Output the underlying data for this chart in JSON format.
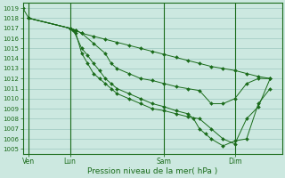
{
  "bg_color": "#cce8e0",
  "grid_color": "#9dc8c0",
  "line_color": "#1a6b1a",
  "marker_color": "#1a6b1a",
  "ylabel_ticks": [
    1005,
    1006,
    1007,
    1008,
    1009,
    1010,
    1011,
    1012,
    1013,
    1014,
    1015,
    1016,
    1017,
    1018,
    1019
  ],
  "xlabel": "Pression niveau de la mer( hPa )",
  "day_labels": [
    "Ven",
    "Lun",
    "Sam",
    "Dim"
  ],
  "day_positions": [
    0.5,
    4.0,
    12.0,
    18.0
  ],
  "series": [
    {
      "x": [
        0,
        0.5,
        4.0,
        4.5,
        5.0,
        6.0,
        7.0,
        8.0,
        9.0,
        10.0,
        11.0,
        12.0,
        13.0,
        14.0,
        15.0,
        16.0,
        17.0,
        18.0,
        19.0,
        20.0,
        21.0
      ],
      "y": [
        1019.0,
        1018.0,
        1017.0,
        1016.8,
        1016.5,
        1016.2,
        1015.9,
        1015.6,
        1015.3,
        1015.0,
        1014.7,
        1014.4,
        1014.1,
        1013.8,
        1013.5,
        1013.2,
        1013.0,
        1012.8,
        1012.5,
        1012.2,
        1012.0
      ]
    },
    {
      "x": [
        0.5,
        4.0,
        4.5,
        5.0,
        6.0,
        7.0,
        7.5,
        8.0,
        9.0,
        10.0,
        11.0,
        12.0,
        13.0,
        14.0,
        15.0,
        16.0,
        17.0,
        18.0,
        19.0,
        20.0,
        21.0
      ],
      "y": [
        1018.0,
        1017.0,
        1016.8,
        1016.5,
        1015.5,
        1014.5,
        1013.5,
        1013.0,
        1012.5,
        1012.0,
        1011.8,
        1011.5,
        1011.2,
        1011.0,
        1010.8,
        1009.5,
        1009.5,
        1010.0,
        1011.5,
        1012.0,
        1012.0
      ]
    },
    {
      "x": [
        0.5,
        4.0,
        4.5,
        5.0,
        5.5,
        6.0,
        6.5,
        7.0,
        7.5,
        8.0,
        9.0,
        10.0,
        11.0,
        12.0,
        13.0,
        14.0,
        15.0,
        16.0,
        17.0,
        18.0,
        19.0,
        20.0,
        21.0
      ],
      "y": [
        1018.0,
        1017.0,
        1016.5,
        1014.5,
        1013.5,
        1012.5,
        1012.0,
        1011.5,
        1011.0,
        1010.5,
        1010.0,
        1009.5,
        1009.0,
        1008.8,
        1008.5,
        1008.2,
        1008.0,
        1007.0,
        1006.0,
        1005.5,
        1008.0,
        1009.2,
        1012.0
      ]
    },
    {
      "x": [
        0.5,
        4.0,
        4.3,
        5.0,
        5.5,
        6.0,
        6.5,
        7.0,
        7.5,
        8.0,
        9.0,
        10.0,
        11.0,
        12.0,
        13.0,
        14.0,
        14.5,
        15.0,
        15.5,
        16.0,
        17.0,
        18.0,
        19.0,
        20.0,
        21.0
      ],
      "y": [
        1018.0,
        1017.0,
        1016.8,
        1015.0,
        1014.3,
        1013.5,
        1012.8,
        1012.0,
        1011.5,
        1011.0,
        1010.5,
        1010.0,
        1009.5,
        1009.2,
        1008.8,
        1008.5,
        1008.0,
        1007.0,
        1006.5,
        1006.0,
        1005.3,
        1005.8,
        1006.0,
        1009.5,
        1011.0
      ]
    }
  ],
  "ylim": [
    1004.5,
    1019.5
  ],
  "xlim": [
    0,
    22
  ],
  "figsize": [
    3.2,
    2.0
  ],
  "dpi": 100
}
